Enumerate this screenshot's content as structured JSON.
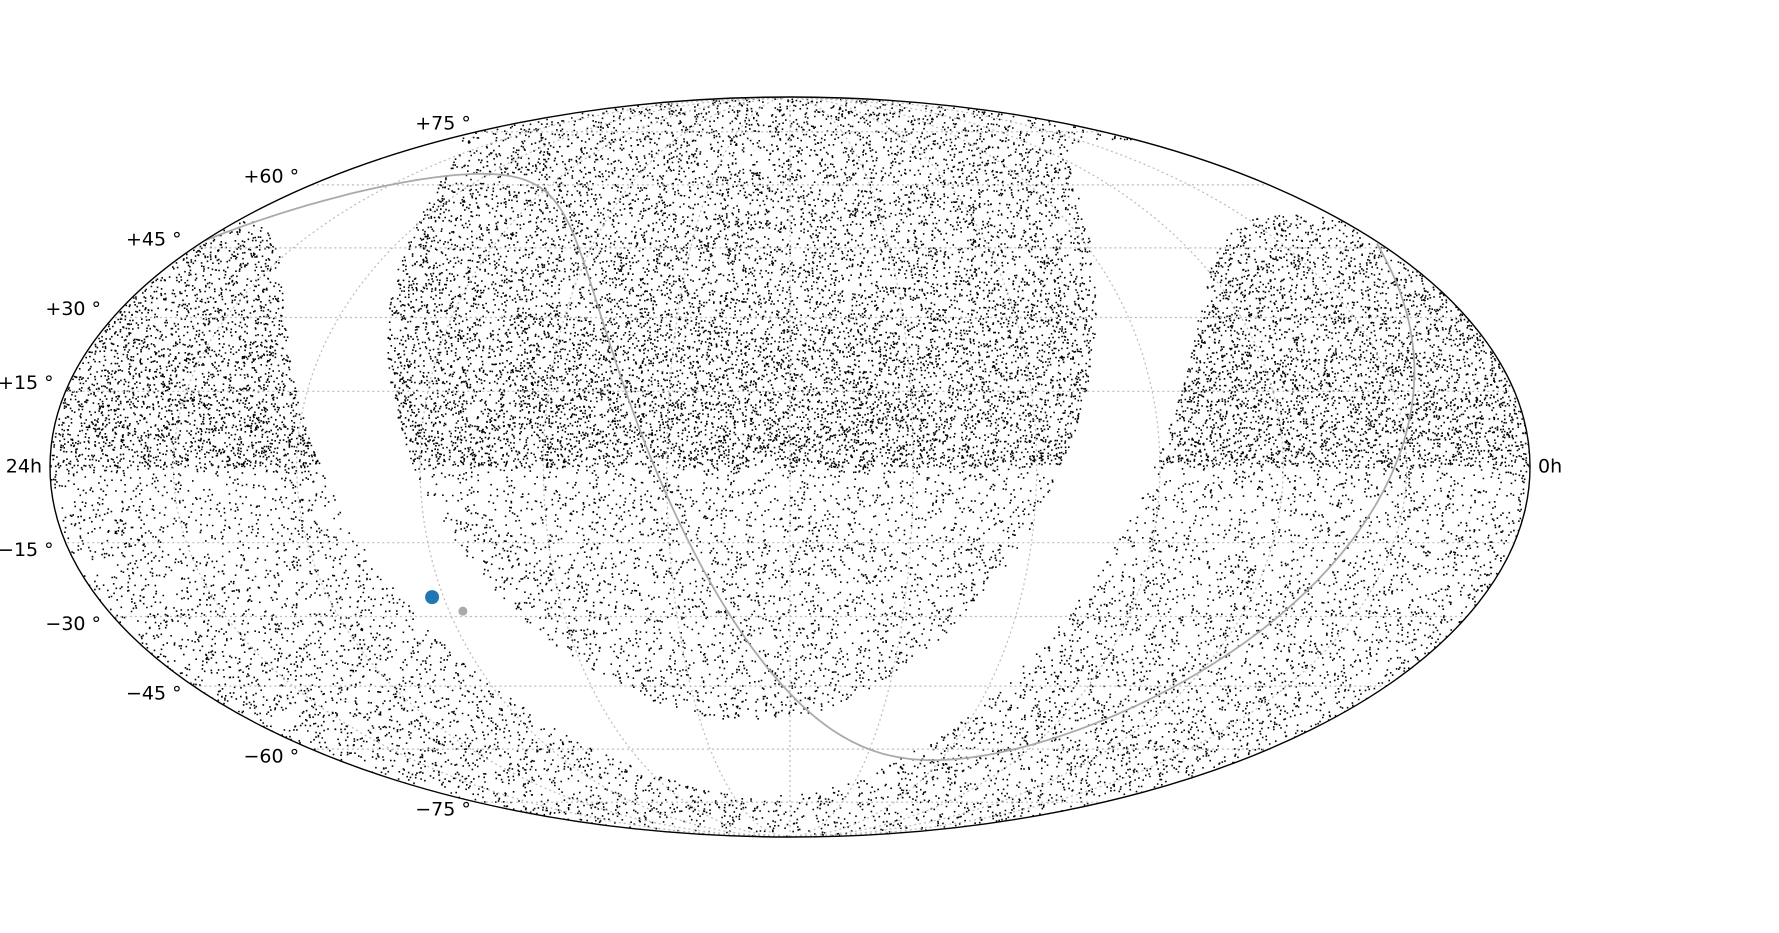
{
  "chart_data": {
    "type": "scatter",
    "projection": "mollweide",
    "coordinate_system": "equatorial",
    "grid": true,
    "title": "",
    "xlabel": "",
    "ylabel": "",
    "x_range_deg": [
      0,
      360
    ],
    "y_range_deg": [
      -90,
      90
    ],
    "tick_labels": {
      "ra_left": "24h",
      "ra_right": "0h",
      "dec": [
        {
          "dec": 75,
          "label": "+75 °"
        },
        {
          "dec": 60,
          "label": "+60 °"
        },
        {
          "dec": 45,
          "label": "+45 °"
        },
        {
          "dec": 30,
          "label": "+30 °"
        },
        {
          "dec": 15,
          "label": "+15 °"
        },
        {
          "dec": -15,
          "label": "−15 °"
        },
        {
          "dec": -30,
          "label": "−30 °"
        },
        {
          "dec": -45,
          "label": "−45 °"
        },
        {
          "dec": -60,
          "label": "−60 °"
        },
        {
          "dec": -75,
          "label": "−75 °"
        }
      ]
    },
    "series": [
      {
        "kind": "star-field",
        "color": "#000000",
        "note_density": "denser north of dec 0, sparser south, empty band around the galactic plane"
      },
      {
        "kind": "galactic-plane-curve",
        "color": "#aaaaaa",
        "avoid_half_width_deg": 10
      },
      {
        "kind": "galactic-center-marker",
        "color": "#aaaaaa",
        "points": [
          {
            "ra_deg": 266.4,
            "dec_deg": -28.9
          }
        ]
      },
      {
        "kind": "highlight-point",
        "color": "#1f77b4",
        "points": [
          {
            "ra_deg": 273.0,
            "dec_deg": -26.0
          }
        ]
      }
    ]
  }
}
